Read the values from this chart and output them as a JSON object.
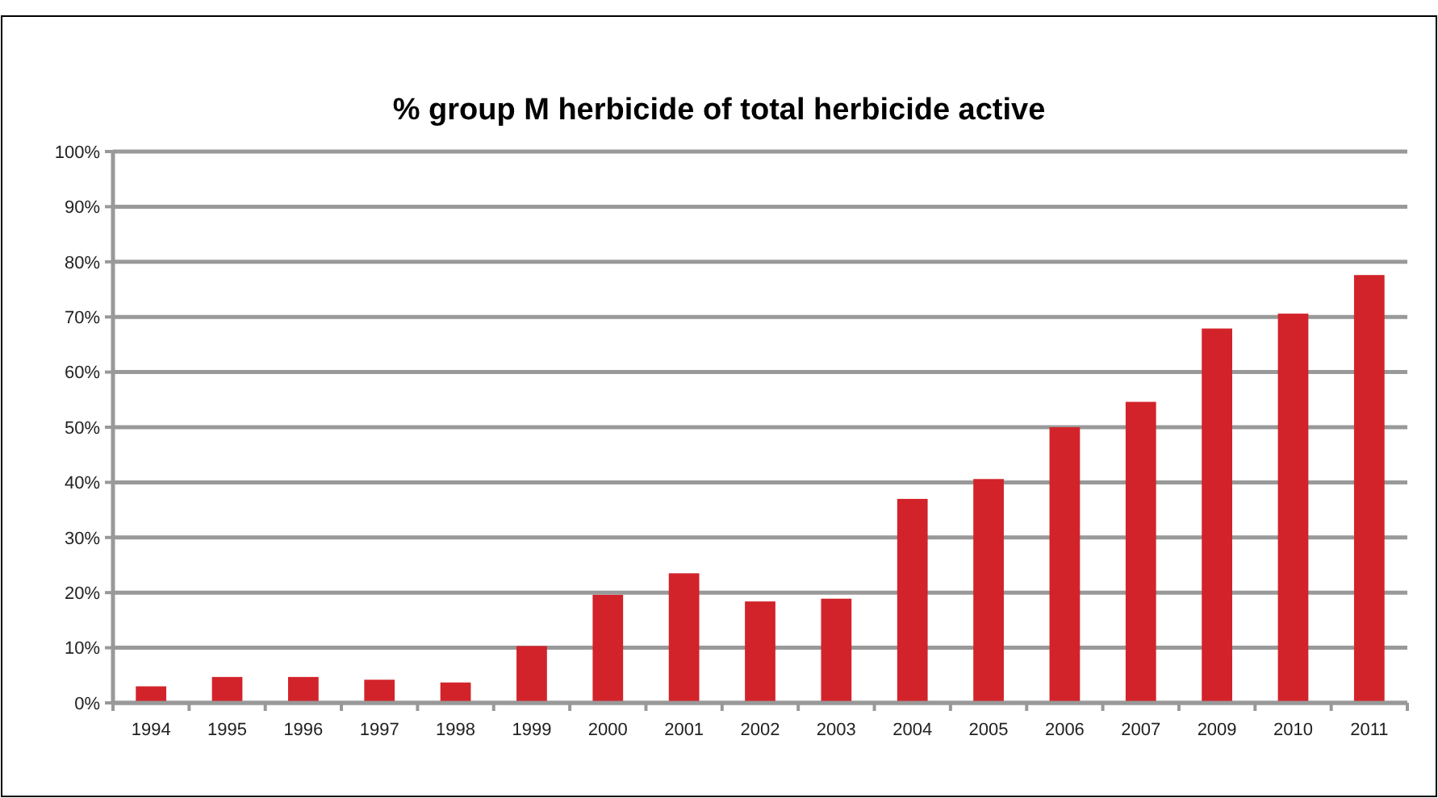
{
  "chart_data": {
    "type": "bar",
    "title": "% group M herbicide of total herbicide active",
    "categories": [
      "1994",
      "1995",
      "1996",
      "1997",
      "1998",
      "1999",
      "2000",
      "2001",
      "2002",
      "2003",
      "2004",
      "2005",
      "2006",
      "2007",
      "2009",
      "2010",
      "2011"
    ],
    "values": [
      3.0,
      4.7,
      4.7,
      4.2,
      3.7,
      10.3,
      19.6,
      23.5,
      18.4,
      18.9,
      37.0,
      40.6,
      50.0,
      54.6,
      67.9,
      70.6,
      77.6
    ],
    "color": "#d2232a",
    "ylim": [
      0,
      100
    ],
    "yticks": [
      {
        "value": 0,
        "label": "0%"
      },
      {
        "value": 10,
        "label": "10%"
      },
      {
        "value": 20,
        "label": "20%"
      },
      {
        "value": 30,
        "label": "30%"
      },
      {
        "value": 40,
        "label": "40%"
      },
      {
        "value": 50,
        "label": "50%"
      },
      {
        "value": 60,
        "label": "60%"
      },
      {
        "value": 70,
        "label": "70%"
      },
      {
        "value": 80,
        "label": "80%"
      },
      {
        "value": 90,
        "label": "90%"
      },
      {
        "value": 100,
        "label": "100%"
      }
    ],
    "grid": "y"
  }
}
